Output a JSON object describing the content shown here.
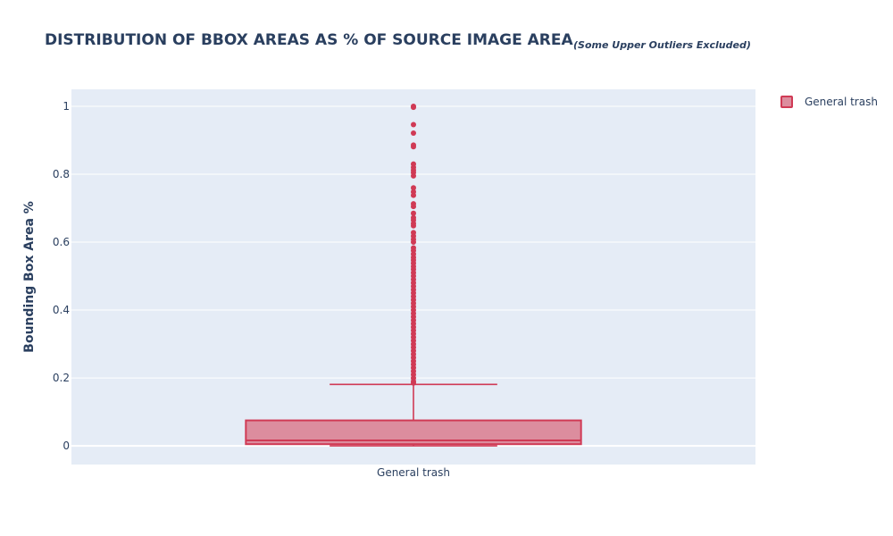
{
  "chart_data": {
    "type": "box",
    "title": "DISTRIBUTION OF BBOX AREAS AS % OF SOURCE IMAGE AREA",
    "subtitle": "(Some Upper Outliers Excluded)",
    "xlabel": "",
    "ylabel": "Bounding Box Area %",
    "categories": [
      "General trash"
    ],
    "ylim": [
      -0.055,
      1.05
    ],
    "yticks": [
      0,
      0.2,
      0.4,
      0.6,
      0.8,
      1
    ],
    "ytick_labels": [
      "0",
      "0.2",
      "0.4",
      "0.6",
      "0.8",
      "1"
    ],
    "grid": true,
    "legend": {
      "placement": "top-right",
      "entries": [
        "General trash"
      ]
    },
    "colors": {
      "series": "#d03a55",
      "box_fill": "#dc8d9e",
      "plot_bg": "#e5ecf6",
      "grid": "#ffffff",
      "text": "#2a3f5f"
    },
    "series": [
      {
        "name": "General trash",
        "min": 0.0,
        "q1": 0.005,
        "median": 0.016,
        "q3": 0.075,
        "upper_fence": 0.181,
        "outliers": [
          1.0,
          0.997,
          0.946,
          0.921,
          0.886,
          0.881,
          0.83,
          0.82,
          0.812,
          0.805,
          0.795,
          0.76,
          0.748,
          0.738,
          0.713,
          0.705,
          0.685,
          0.672,
          0.665,
          0.655,
          0.648,
          0.628,
          0.618,
          0.608,
          0.6,
          0.583,
          0.575,
          0.565,
          0.555,
          0.547,
          0.538,
          0.528,
          0.52,
          0.51,
          0.5,
          0.49,
          0.48,
          0.47,
          0.46,
          0.45,
          0.44,
          0.43,
          0.42,
          0.41,
          0.4,
          0.39,
          0.38,
          0.37,
          0.36,
          0.35,
          0.34,
          0.33,
          0.32,
          0.31,
          0.3,
          0.29,
          0.28,
          0.27,
          0.26,
          0.25,
          0.24,
          0.23,
          0.22,
          0.21,
          0.2,
          0.19,
          0.185
        ]
      }
    ]
  }
}
